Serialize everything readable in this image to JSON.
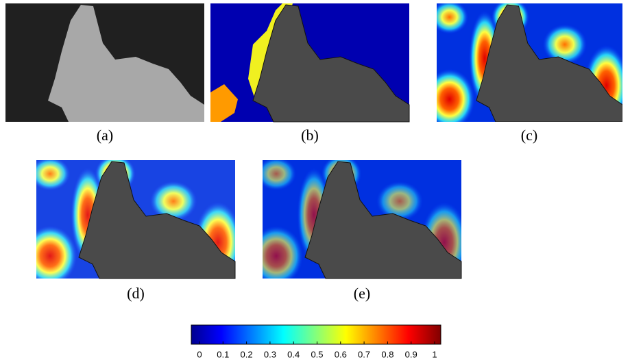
{
  "panels": [
    {
      "label": "(a)"
    },
    {
      "label": "(b)"
    },
    {
      "label": "(c)"
    },
    {
      "label": "(d)"
    },
    {
      "label": "(e)"
    }
  ],
  "colorbar": {
    "lim": [
      0,
      1
    ],
    "ticks": [
      0,
      0.1,
      0.2,
      0.3,
      0.4,
      0.5,
      0.6,
      0.7,
      0.8,
      0.9,
      1
    ]
  }
}
